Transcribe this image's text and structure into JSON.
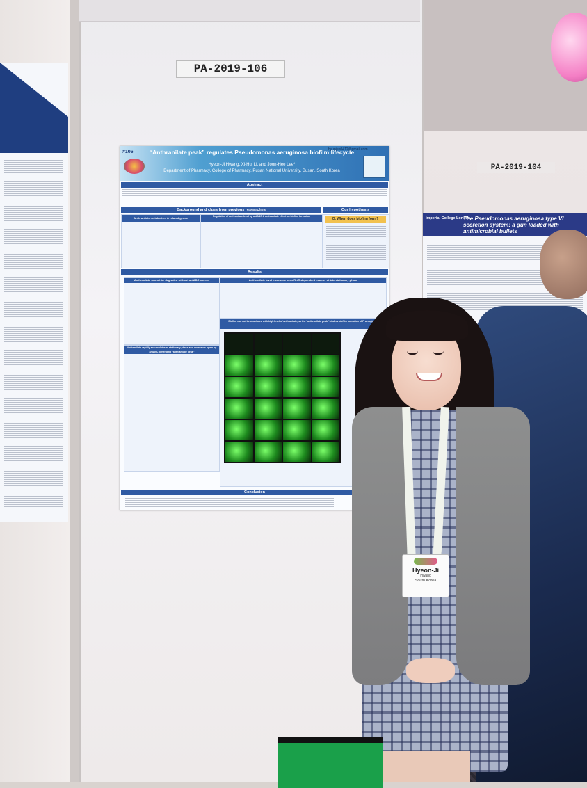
{
  "booth": {
    "main_label": "PA-2019-106",
    "right_label": "PA-2019-104"
  },
  "main_poster": {
    "number": "#106",
    "email": "hyunjee0412@gmail.com",
    "title": "“Anthranilate peak” regulates Pseudomonas aeruginosa biofilm lifecycle",
    "authors": "Hyeon-Ji Hwang, Xi-Hui Li, and Joon-Hee Lee*",
    "affiliation": "Department of Pharmacy, College of Pharmacy, Pusan National University, Busan, South Korea",
    "sections": {
      "abstract": "Abstract",
      "background": "Background and clues from previous researches",
      "hypothesis": "Our hypothesis",
      "hypothesis_question": "Q. When does biofilm form?",
      "results": "Results",
      "conclusion": "Conclusion"
    },
    "panels": {
      "metabolism": "Anthranilate metabolism & related genes",
      "regulation": "Regulation of anthranilate level by antABC & anthranilate effect on biofilm formation",
      "degradation": "Anthranilate cannot be degraded without antABC operon",
      "rhlr": "Anthranilate level increases in an RhlR-dependent manner at late stationary phase",
      "accumulate": "Anthranilate rapidly accumulates at stationary phase and decreases again by antABC generating “anthranilate peak”",
      "biofilm": "Biofilm can not be structured with high level of anthranilate, so the “anthranilate peak” hinders biofilm formation of P. aeruginosa"
    }
  },
  "right_poster": {
    "institution": "Imperial College London",
    "title": "The Pseudomonas aeruginosa type VI secretion system: a gun loaded with antimicrobial bullets"
  },
  "badge": {
    "name": "Hyeon-Ji",
    "surname": "Hwang",
    "country": "South Korea"
  }
}
